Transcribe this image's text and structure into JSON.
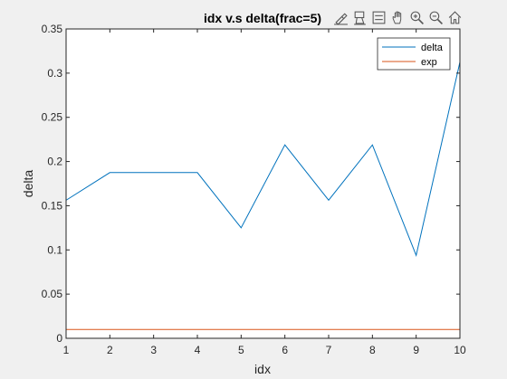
{
  "chart_data": {
    "type": "line",
    "title": "idx v.s delta(frac=5)",
    "xlabel": "idx",
    "ylabel": "delta",
    "xlim": [
      1,
      10
    ],
    "ylim": [
      0,
      0.35
    ],
    "x": [
      1,
      2,
      3,
      4,
      5,
      6,
      7,
      8,
      9,
      10
    ],
    "xticks": [
      1,
      2,
      3,
      4,
      5,
      6,
      7,
      8,
      9,
      10
    ],
    "xtick_labels": [
      "1",
      "2",
      "3",
      "4",
      "5",
      "6",
      "7",
      "8",
      "9",
      "10"
    ],
    "yticks": [
      0,
      0.05,
      0.1,
      0.15,
      0.2,
      0.25,
      0.3,
      0.35
    ],
    "ytick_labels": [
      "0",
      "0.05",
      "0.1",
      "0.15",
      "0.2",
      "0.25",
      "0.3",
      "0.35"
    ],
    "grid": false,
    "legend_position": "top-right",
    "series": [
      {
        "name": "delta",
        "color": "#0072bd",
        "values": [
          0.1562,
          0.1875,
          0.1875,
          0.1875,
          0.125,
          0.2188,
          0.1562,
          0.2188,
          0.0938,
          0.3125
        ]
      },
      {
        "name": "exp",
        "color": "#d95319",
        "values": [
          0.01,
          0.01,
          0.01,
          0.01,
          0.01,
          0.01,
          0.01,
          0.01,
          0.01,
          0.01
        ]
      }
    ]
  },
  "toolbar": {
    "icons": [
      "brush-icon",
      "data-tips-icon",
      "legend-icon",
      "pan-icon",
      "zoom-in-icon",
      "zoom-out-icon",
      "home-icon"
    ]
  },
  "colors": {
    "figure_bg": "#f0f0f0",
    "axes_bg": "#ffffff",
    "axis": "#262626"
  }
}
